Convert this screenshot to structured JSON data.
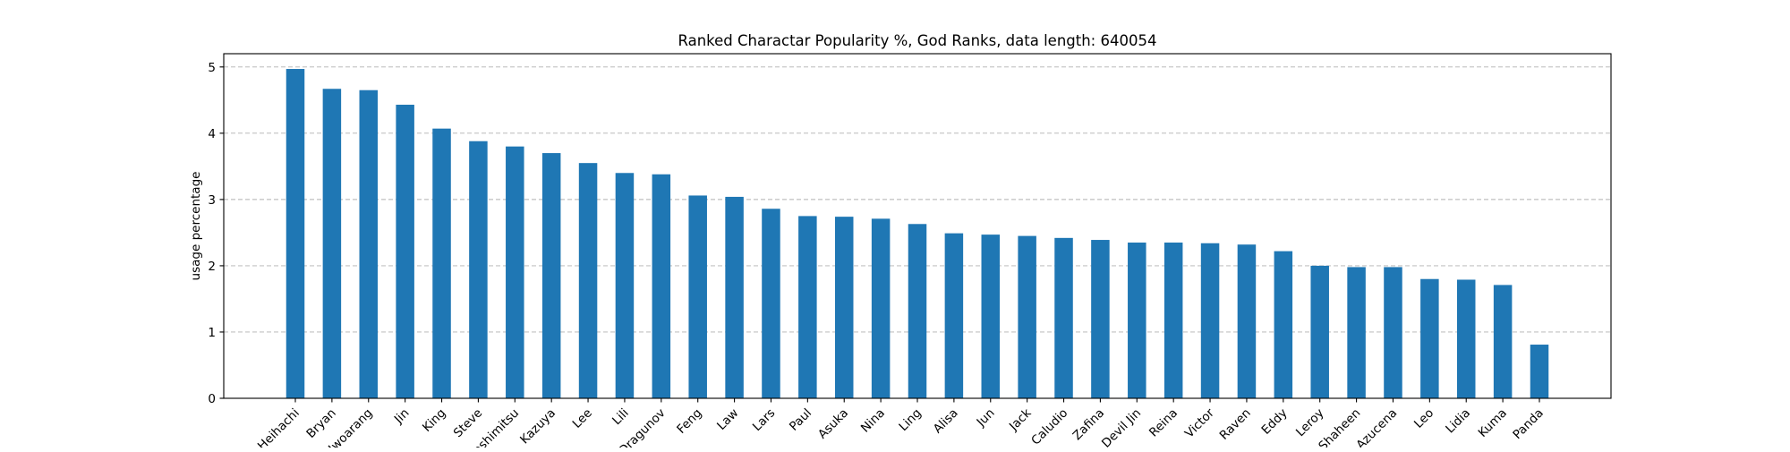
{
  "chart_data": {
    "type": "bar",
    "title": "Ranked Charactar Popularity %, God Ranks, data length: 640054",
    "xlabel": "",
    "ylabel": "usage percentage",
    "ylim": [
      0,
      5.2
    ],
    "yticks": [
      0,
      1,
      2,
      3,
      4,
      5
    ],
    "grid": "y-dashed",
    "bar_color": "#1f77b4",
    "categories": [
      "Heihachi",
      "Bryan",
      "Hwoarang",
      "Jin",
      "King",
      "Steve",
      "Yoshimitsu",
      "Kazuya",
      "Lee",
      "Lili",
      "Dragunov",
      "Feng",
      "Law",
      "Lars",
      "Paul",
      "Asuka",
      "Nina",
      "Ling",
      "Alisa",
      "Jun",
      "Jack",
      "Caludio",
      "Zafina",
      "Devil Jin",
      "Reina",
      "Victor",
      "Raven",
      "Eddy",
      "Leroy",
      "Shaheen",
      "Azucena",
      "Leo",
      "Lidia",
      "Kuma",
      "Panda"
    ],
    "values": [
      4.97,
      4.67,
      4.65,
      4.43,
      4.07,
      3.88,
      3.8,
      3.7,
      3.55,
      3.4,
      3.38,
      3.06,
      3.04,
      2.86,
      2.75,
      2.74,
      2.71,
      2.63,
      2.49,
      2.47,
      2.45,
      2.42,
      2.39,
      2.35,
      2.35,
      2.34,
      2.32,
      2.22,
      2.0,
      1.98,
      1.98,
      1.8,
      1.79,
      1.71,
      0.81
    ]
  }
}
